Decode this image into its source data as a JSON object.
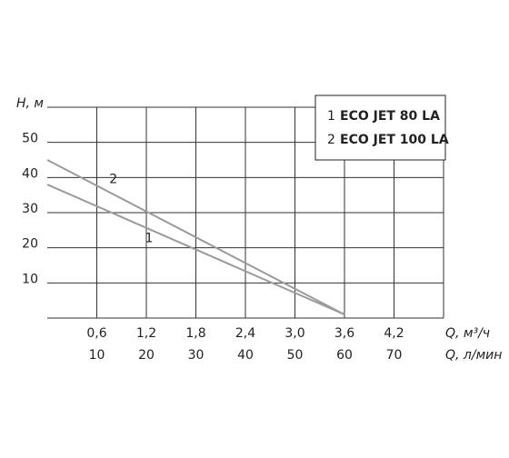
{
  "chart_data": {
    "type": "line",
    "y_label": "H, м",
    "x_label": "Q, м³/ч",
    "x2_label": "Q, л/мин",
    "x": [
      0,
      3.6
    ],
    "series": [
      {
        "label": "1",
        "name": "ECO JET 80 LA",
        "color": "#9a9a9a",
        "values": [
          38,
          1
        ]
      },
      {
        "label": "2",
        "name": "ECO JET 100 LA",
        "color": "#9a9a9a",
        "values": [
          45,
          1
        ]
      }
    ],
    "xlim": [
      0,
      4.8
    ],
    "xticks": [
      {
        "value": 0.6,
        "label": "0,6"
      },
      {
        "value": 1.2,
        "label": "1,2"
      },
      {
        "value": 1.8,
        "label": "1,8"
      },
      {
        "value": 2.4,
        "label": "2,4"
      },
      {
        "value": 3.0,
        "label": "3,0"
      },
      {
        "value": 3.6,
        "label": "3,6"
      },
      {
        "value": 4.2,
        "label": "4,2"
      }
    ],
    "x2lim": [
      0,
      80
    ],
    "x2ticks": [
      10,
      20,
      30,
      40,
      50,
      60,
      70
    ],
    "ylim": [
      0,
      60
    ],
    "yticks": [
      10,
      20,
      30,
      40,
      50
    ],
    "grid": true
  }
}
